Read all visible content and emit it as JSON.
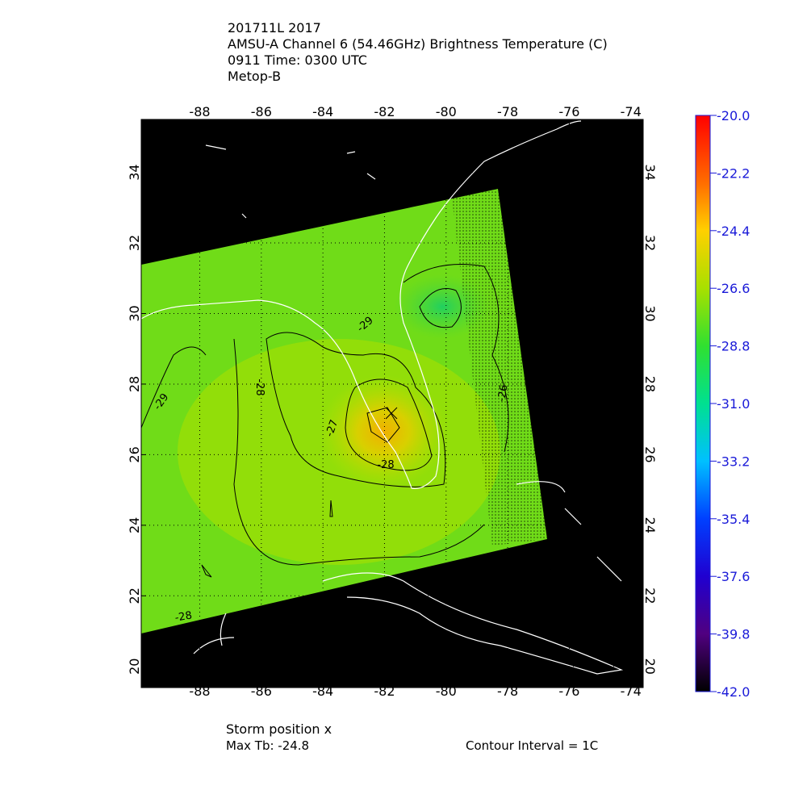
{
  "chart_data": {
    "type": "map",
    "title": [
      "201711L 2017",
      "AMSU-A Channel 6 (54.46GHz) Brightness Temperature (C)",
      "0911 Time: 0300 UTC",
      "Metop-B"
    ],
    "xlim": [
      -89.9,
      -73.6
    ],
    "ylim": [
      19.4,
      35.5
    ],
    "xticks": [
      -88,
      -86,
      -84,
      -82,
      -80,
      -78,
      -76,
      -74
    ],
    "yticks": [
      20,
      22,
      24,
      26,
      28,
      30,
      32,
      34
    ],
    "grid": true,
    "colorbar": {
      "lim": [
        -42,
        -20
      ],
      "ticks": [
        {
          "value": -20,
          "label": "-20.0"
        },
        -22.2,
        -24.4,
        -26.6,
        -28.8,
        {
          "value": -31,
          "label": "-31.0"
        },
        -33.2,
        -35.4,
        -37.6,
        -39.8,
        {
          "value": -42,
          "label": "-42.0"
        }
      ]
    },
    "contour_labels": [
      "-29",
      "-28",
      "-29",
      "-27",
      "-28",
      "-28",
      "-26"
    ],
    "storm_position": "Storm position x",
    "max_tb": "Max Tb: -24.8",
    "contour_interval": "Contour Interval = 1C"
  }
}
